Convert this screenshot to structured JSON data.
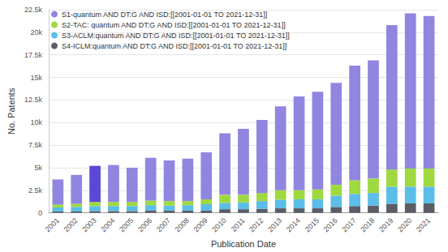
{
  "chart_data": {
    "type": "bar",
    "stacked": true,
    "grid": true,
    "legend": "top-left",
    "x_label": "Publication Date",
    "y_label": "No. Patents",
    "categories": [
      "2001",
      "2002",
      "2003",
      "2004",
      "2005",
      "2006",
      "2007",
      "2008",
      "2009",
      "2010",
      "2011",
      "2012",
      "2013",
      "2014",
      "2015",
      "2016",
      "2017",
      "2018",
      "2019",
      "2020",
      "2021"
    ],
    "ylim": [
      0,
      22500
    ],
    "yticks": [
      0,
      {
        "value": 2500,
        "label": "2.5k"
      },
      {
        "value": 5000,
        "label": "5k"
      },
      {
        "value": 7500,
        "label": "7.5k"
      },
      {
        "value": 10000,
        "label": "10k"
      },
      {
        "value": 12500,
        "label": "12.5k"
      },
      {
        "value": 15000,
        "label": "15k"
      },
      {
        "value": 17500,
        "label": "17.5k"
      },
      {
        "value": 20000,
        "label": "20k"
      },
      {
        "value": 22500,
        "label": "22.5k"
      }
    ],
    "series": [
      {
        "name": "S4-ICLM:quantum AND DT:G AND ISD:[[2001-01-01 TO 2021-12-31]]",
        "color": "#5a5d66",
        "values": [
          150,
          150,
          200,
          200,
          200,
          250,
          250,
          250,
          250,
          400,
          400,
          450,
          500,
          500,
          500,
          650,
          750,
          800,
          1000,
          1050,
          1050
        ]
      },
      {
        "name": "S3-ACLM:quantum AND DT:G AND ISD:[[2001-01-01 TO 2021-12-31]]",
        "color": "#5bbde8",
        "values": [
          450,
          500,
          550,
          550,
          550,
          600,
          550,
          600,
          700,
          700,
          750,
          850,
          950,
          1000,
          1000,
          1250,
          1350,
          1400,
          1900,
          1850,
          1850
        ]
      },
      {
        "name": "S2-TAC: quantum AND DT:G AND ISD:[[2001-01-01 TO 2021-12-31]]",
        "color": "#9ed93f",
        "values": [
          300,
          350,
          450,
          450,
          450,
          500,
          500,
          450,
          550,
          900,
          850,
          900,
          1050,
          1000,
          1100,
          1200,
          1500,
          1600,
          1900,
          2000,
          2000
        ]
      },
      {
        "name": "S1-quantum AND DT:G AND ISD:[[2001-01-01 TO 2021-12-31]]",
        "color": "#9086e0",
        "colors": [
          "#9086e0",
          "#9086e0",
          "#5b48d6",
          "#9086e0",
          "#9086e0",
          "#9086e0",
          "#9086e0",
          "#9086e0",
          "#9086e0",
          "#9086e0",
          "#9086e0",
          "#9086e0",
          "#9086e0",
          "#9086e0",
          "#9086e0",
          "#9086e0",
          "#9086e0",
          "#9086e0",
          "#9086e0",
          "#9086e0",
          "#9086e0"
        ],
        "values": [
          2800,
          3200,
          4000,
          4100,
          3800,
          4750,
          4500,
          4700,
          5200,
          6800,
          7300,
          8100,
          9300,
          10400,
          10800,
          11300,
          12700,
          13100,
          16000,
          17200,
          16900
        ]
      }
    ]
  }
}
